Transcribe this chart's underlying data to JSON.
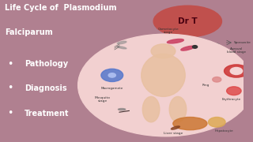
{
  "title_line1": "Life Cycle of  Plasmodium",
  "title_line2": "Falciparum",
  "bullet_items": [
    "Pathology",
    "Diagnosis",
    "Treatment"
  ],
  "dr_label": "Dr T",
  "bg_color": "#b08090",
  "blob_color": "#c0504d",
  "circle_bg": "#f2d0d0",
  "title_color": "#ffffff",
  "bullet_color": "#ffffff",
  "dr_color": "#4a0010",
  "fig_width": 3.2,
  "fig_height": 1.8,
  "dpi": 100
}
